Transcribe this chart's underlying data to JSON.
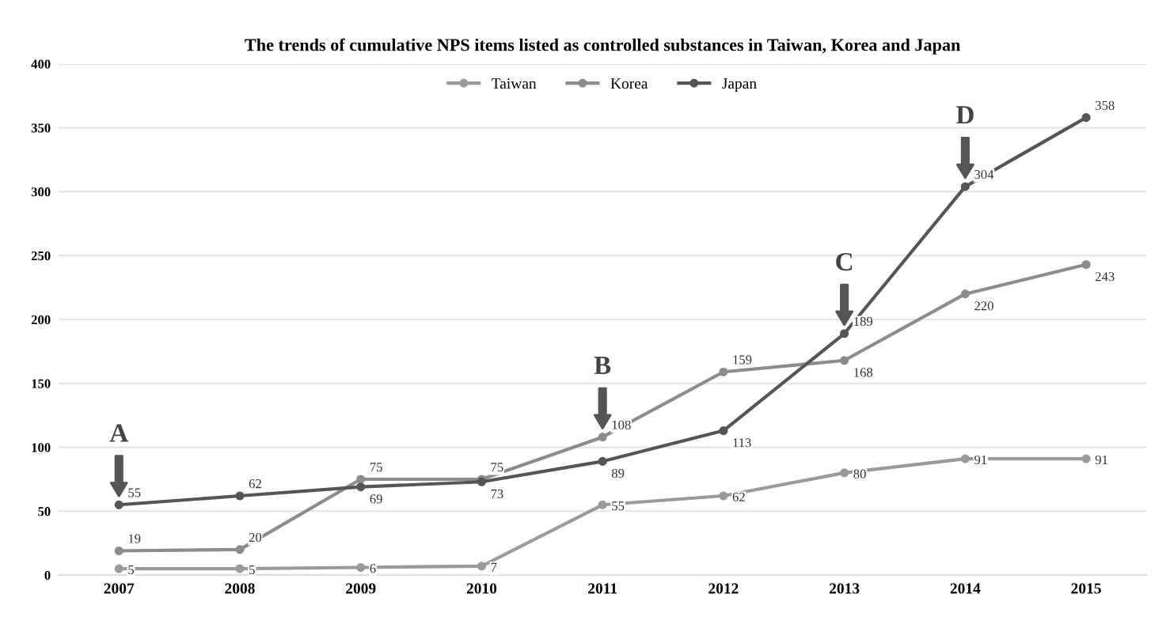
{
  "chart_data": {
    "type": "line",
    "title": "The trends of cumulative NPS items listed as controlled substances in Taiwan, Korea and Japan",
    "categories": [
      "2007",
      "2008",
      "2009",
      "2010",
      "2011",
      "2012",
      "2013",
      "2014",
      "2015"
    ],
    "series": [
      {
        "name": "Taiwan",
        "color": "#9a9a9a",
        "values": [
          5,
          5,
          6,
          7,
          55,
          62,
          80,
          91,
          91
        ]
      },
      {
        "name": "Korea",
        "color": "#8c8c8c",
        "values": [
          19,
          20,
          75,
          75,
          108,
          159,
          168,
          220,
          243
        ]
      },
      {
        "name": "Japan",
        "color": "#555555",
        "values": [
          55,
          62,
          69,
          73,
          89,
          113,
          189,
          304,
          358
        ]
      }
    ],
    "ylim": [
      0,
      400
    ],
    "yticks": [
      0,
      50,
      100,
      150,
      200,
      250,
      300,
      350,
      400
    ],
    "grid": "y",
    "legend": "top",
    "marker": "circle",
    "line_style": "solid",
    "data_labels": true,
    "annotations": [
      {
        "text": "A",
        "x": "2007",
        "y": 55
      },
      {
        "text": "B",
        "x": "2011",
        "y": 108
      },
      {
        "text": "C",
        "x": "2013",
        "y": 189
      },
      {
        "text": "D",
        "x": "2014",
        "y": 304
      }
    ]
  }
}
